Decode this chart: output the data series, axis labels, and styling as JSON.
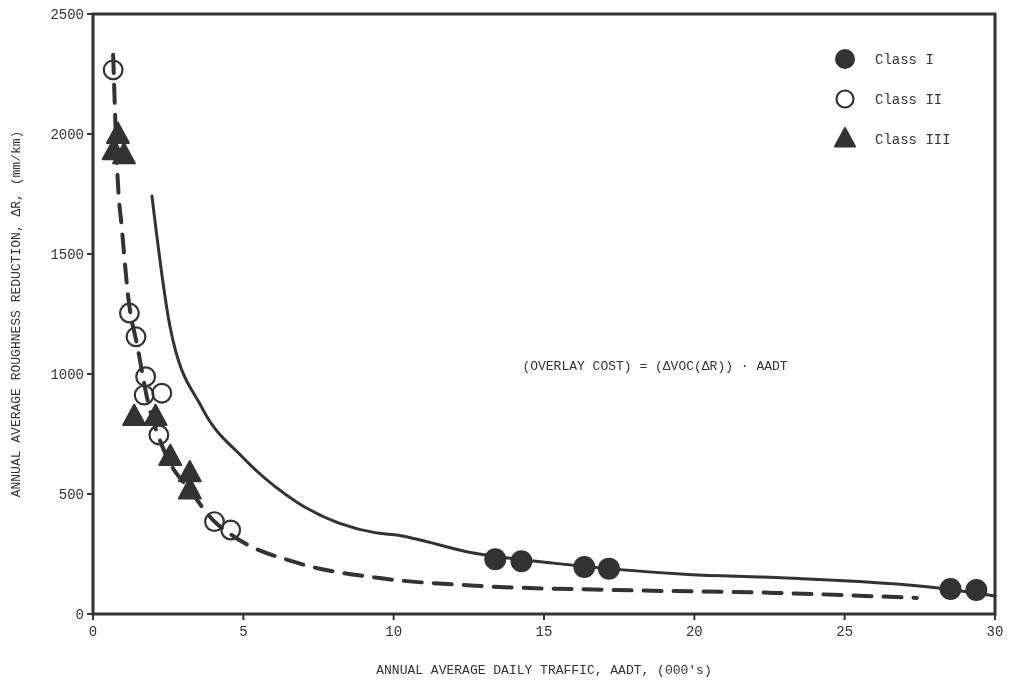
{
  "chart_data": {
    "type": "scatter",
    "xlabel": "ANNUAL AVERAGE DAILY TRAFFIC, AADT, (000's)",
    "ylabel": "ANNUAL AVERAGE ROUGHNESS REDUCTION, ΔR, (mm/km)",
    "annotations": [
      "(OVERLAY COST) = (ΔVOC(ΔR)) · AADT"
    ],
    "xlim": [
      0,
      30
    ],
    "xticks": [
      0,
      5,
      10,
      15,
      20,
      25,
      30
    ],
    "ylim": [
      0,
      2500
    ],
    "yticks": [
      0,
      500,
      1000,
      1500,
      2000,
      2500
    ],
    "grid": false,
    "legend": "top right",
    "series": [
      {
        "type": "line",
        "color": "#333333",
        "line_style": "solid",
        "marker": "none",
        "x": [
          1.96,
          2.56,
          3.63,
          4.97,
          6.77,
          9.38,
          10.03,
          12.65,
          15.3,
          19.8,
          22.7,
          28.05,
          30
        ],
        "values": [
          1742,
          1198,
          858,
          654,
          467,
          339,
          330,
          254,
          212,
          165,
          152,
          109,
          75
        ]
      },
      {
        "type": "line",
        "color": "#333333",
        "line_style": "dashed",
        "marker": "none",
        "x": [
          0.67,
          0.83,
          0.96,
          1.16,
          1.5,
          1.8,
          2.3,
          2.6,
          3.2,
          4.0,
          4.6,
          6.83,
          9.38,
          12.7,
          17.4,
          22.7,
          27.4
        ],
        "values": [
          2330,
          1792,
          1606,
          1333,
          1100,
          900,
          700,
          620,
          520,
          390,
          330,
          212,
          152,
          118,
          100,
          88,
          67
        ]
      },
      {
        "name": "Class I",
        "color": "#333333",
        "marker": "circle",
        "x": [
          13.38,
          14.25,
          16.34,
          17.16,
          28.52,
          29.38
        ],
        "values": [
          228,
          220,
          196,
          189,
          104,
          100
        ]
      },
      {
        "name": "Class II",
        "color": "#333333",
        "marker": "circle-open",
        "x": [
          0.67,
          1.21,
          1.43,
          1.75,
          1.7,
          2.29,
          2.19,
          4.04,
          4.58
        ],
        "values": [
          2267,
          1254,
          1155,
          989,
          912,
          920,
          746,
          385,
          350
        ]
      },
      {
        "name": "Class III",
        "color": "#333333",
        "marker": "triangle",
        "x": [
          0.83,
          0.69,
          1.03,
          1.37,
          2.08,
          2.57,
          3.22,
          3.22
        ],
        "values": [
          1997,
          1929,
          1912,
          822,
          822,
          655,
          587,
          516
        ]
      }
    ]
  }
}
